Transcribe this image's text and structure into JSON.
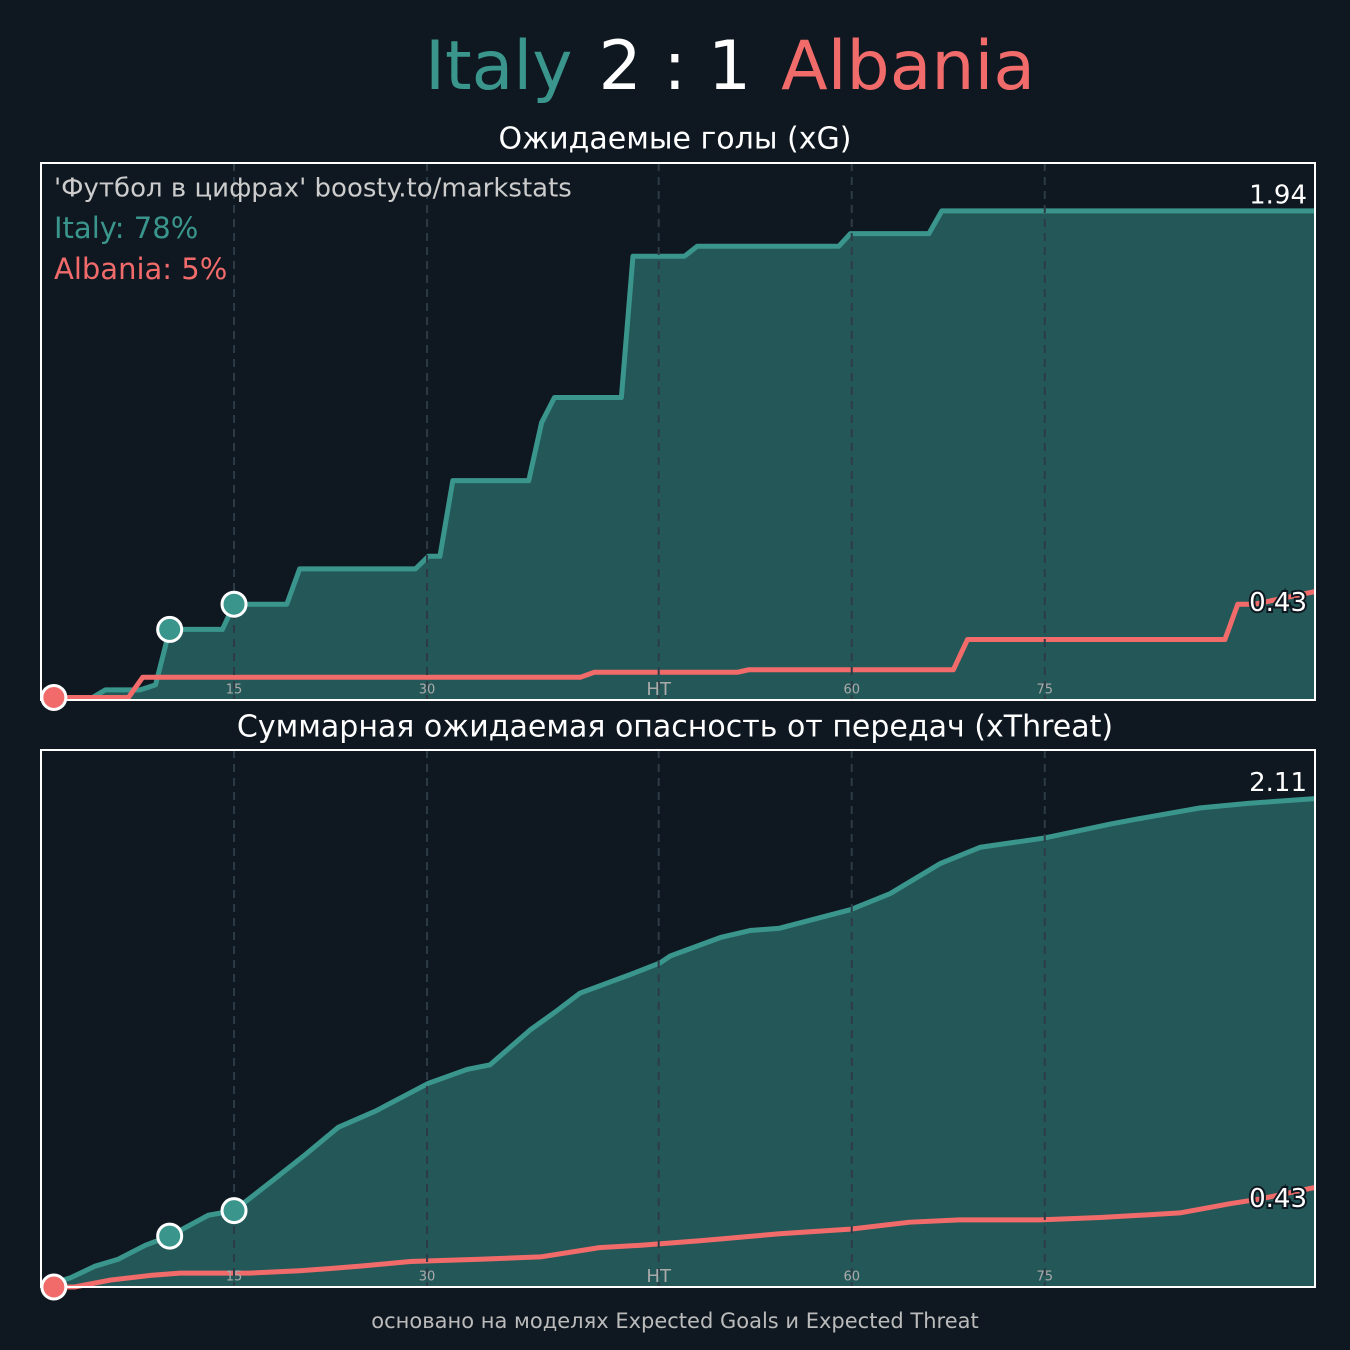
{
  "header": {
    "home": "Italy",
    "score": "2 : 1",
    "away": "Albania"
  },
  "footer": "основано на моделях Expected Goals и Expected Threat",
  "chart_data": [
    {
      "type": "line",
      "title": "Ожидаемые голы (xG)",
      "annotations": [
        "'Футбол в цифрах' boosty.to/markstats",
        "Italy: 78%",
        "Albania: 5%"
      ],
      "xlim": [
        0,
        99
      ],
      "ylim": [
        0,
        2.13
      ],
      "xticks": [
        15,
        30,
        {
          "value": 48,
          "label": "HT"
        },
        {
          "value": 63,
          "label": "60"
        },
        {
          "value": 78,
          "label": "75"
        }
      ],
      "grid": true,
      "series": [
        {
          "color": "#3a968c",
          "fill": "#245858",
          "x": [
            0,
            4,
            5,
            7.7,
            8.9,
            10,
            14.1,
            15,
            19.1,
            20.1,
            29.1,
            30.1,
            31,
            32,
            37.9,
            38.9,
            39.9,
            45.1,
            46,
            50,
            51,
            62,
            62.9,
            69,
            70,
            99
          ],
          "values": [
            0.01,
            0.01,
            0.04,
            0.04,
            0.06,
            0.28,
            0.28,
            0.38,
            0.38,
            0.52,
            0.52,
            0.57,
            0.57,
            0.87,
            0.87,
            1.1,
            1.2,
            1.2,
            1.76,
            1.76,
            1.8,
            1.8,
            1.85,
            1.85,
            1.94,
            1.94
          ],
          "goals": [
            10,
            15
          ]
        },
        {
          "color": "#f26b6b",
          "x": [
            0,
            6.8,
            7.9,
            41.9,
            43,
            54.1,
            55,
            70.9,
            72,
            92,
            93,
            94.3,
            99
          ],
          "values": [
            0.01,
            0.01,
            0.09,
            0.09,
            0.11,
            0.11,
            0.12,
            0.12,
            0.24,
            0.24,
            0.38,
            0.38,
            0.43
          ],
          "goals": [
            1
          ]
        }
      ]
    },
    {
      "type": "line",
      "title": "Суммарная ожидаемая опасность от передач (xThreat)",
      "xlim": [
        0,
        99
      ],
      "ylim": [
        0,
        2.32
      ],
      "xticks": [
        15,
        30,
        {
          "value": 48,
          "label": "HT"
        },
        {
          "value": 63,
          "label": "60"
        },
        {
          "value": 78,
          "label": "75"
        }
      ],
      "grid": true,
      "series": [
        {
          "color": "#3a968c",
          "fill": "#245858",
          "x": [
            0,
            2.3,
            4.2,
            6,
            8.1,
            10,
            13,
            15,
            18,
            20.5,
            23.1,
            26,
            30.1,
            33.1,
            34.9,
            38,
            40,
            41.9,
            45.8,
            48.1,
            48.9,
            52.8,
            55.1,
            57.4,
            62.9,
            66,
            69.9,
            73,
            78,
            83.1,
            85,
            90.1,
            93.9,
            99
          ],
          "values": [
            0,
            0.04,
            0.09,
            0.12,
            0.18,
            0.22,
            0.31,
            0.33,
            0.46,
            0.57,
            0.69,
            0.76,
            0.88,
            0.94,
            0.96,
            1.11,
            1.19,
            1.27,
            1.35,
            1.4,
            1.43,
            1.51,
            1.54,
            1.55,
            1.63,
            1.7,
            1.83,
            1.9,
            1.94,
            2.0,
            2.02,
            2.07,
            2.09,
            2.11
          ],
          "goals": [
            10,
            15
          ]
        },
        {
          "color": "#f26b6b",
          "x": [
            0,
            2.6,
            5.4,
            8.5,
            10.8,
            16.2,
            20.1,
            22.5,
            24.8,
            28.7,
            34.1,
            38.8,
            43.4,
            46.5,
            51.2,
            57.4,
            62.9,
            67.5,
            71.4,
            77.6,
            82.3,
            88.5,
            92.4,
            94.7,
            99
          ],
          "values": [
            0,
            0,
            0.03,
            0.05,
            0.06,
            0.06,
            0.07,
            0.08,
            0.09,
            0.11,
            0.12,
            0.13,
            0.17,
            0.18,
            0.2,
            0.23,
            0.25,
            0.28,
            0.29,
            0.29,
            0.3,
            0.32,
            0.36,
            0.38,
            0.43
          ],
          "goals": [
            1
          ]
        }
      ]
    }
  ]
}
